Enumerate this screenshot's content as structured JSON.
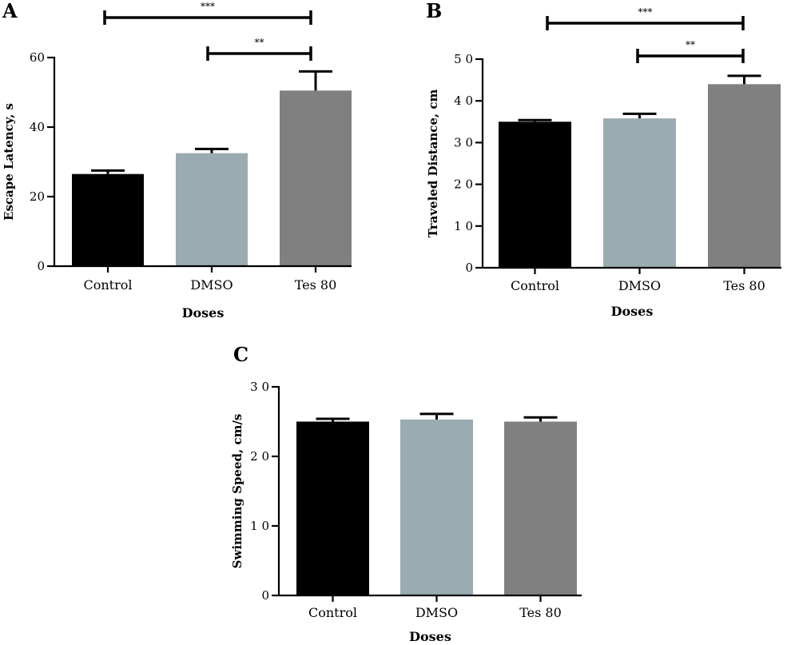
{
  "chart_data": [
    {
      "panel": "A",
      "type": "bar",
      "categories": [
        "Control",
        "DMSO",
        "Tes 80"
      ],
      "values": [
        26.5,
        32.5,
        50.5
      ],
      "errors": [
        1.0,
        1.2,
        5.5
      ],
      "colors": [
        "#000000",
        "#9aabb2",
        "#808080"
      ],
      "xlabel": "Doses",
      "ylabel": "Escape Latency, s",
      "ylim": [
        0,
        60
      ],
      "yticks": [
        0,
        20,
        40,
        60
      ],
      "ytick_labels": [
        "0",
        "20",
        "40",
        "60"
      ],
      "significance": [
        {
          "from": 0,
          "to": 2,
          "label": "***"
        },
        {
          "from": 1,
          "to": 2,
          "label": "**"
        }
      ]
    },
    {
      "panel": "B",
      "type": "bar",
      "categories": [
        "Control",
        "DMSO",
        "Tes 80"
      ],
      "values": [
        35.0,
        35.8,
        44.0
      ],
      "errors": [
        0.4,
        1.1,
        2.0
      ],
      "colors": [
        "#000000",
        "#9aabb2",
        "#808080"
      ],
      "xlabel": "Doses",
      "ylabel": "Traveled Distance, cm",
      "ylim": [
        0,
        50
      ],
      "yticks": [
        0,
        10,
        20,
        30,
        40,
        50
      ],
      "ytick_labels": [
        "0",
        "1 0",
        "2 0",
        "3 0",
        "4 0",
        "5 0"
      ],
      "significance": [
        {
          "from": 0,
          "to": 2,
          "label": "***"
        },
        {
          "from": 1,
          "to": 2,
          "label": "**"
        }
      ]
    },
    {
      "panel": "C",
      "type": "bar",
      "categories": [
        "Control",
        "DMSO",
        "Tes 80"
      ],
      "values": [
        25.0,
        25.3,
        25.0
      ],
      "errors": [
        0.4,
        0.8,
        0.6
      ],
      "colors": [
        "#000000",
        "#9aabb2",
        "#808080"
      ],
      "xlabel": "Doses",
      "ylabel": "Swimming Speed, cm/s",
      "ylim": [
        0,
        30
      ],
      "yticks": [
        0,
        10,
        20,
        30
      ],
      "ytick_labels": [
        "0",
        "1 0",
        "2 0",
        "3 0"
      ],
      "significance": []
    }
  ]
}
